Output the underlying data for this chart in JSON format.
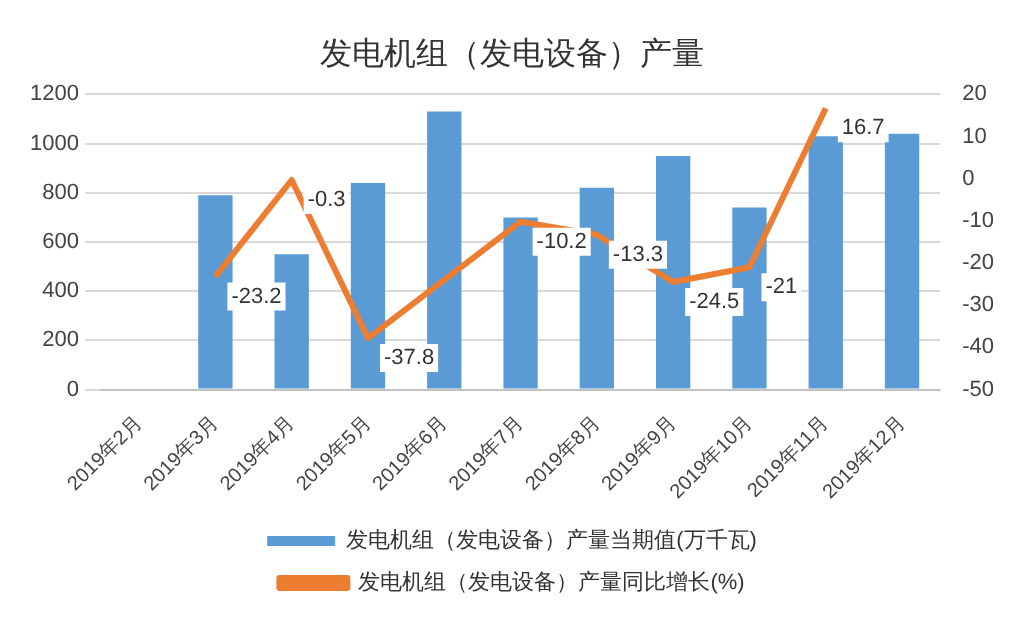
{
  "chart_data": {
    "type": "bar",
    "title": "发电机组（发电设备）产量",
    "categories": [
      "2019年2月",
      "2019年3月",
      "2019年4月",
      "2019年5月",
      "2019年6月",
      "2019年7月",
      "2019年8月",
      "2019年9月",
      "2019年10月",
      "2019年11月",
      "2019年12月"
    ],
    "series": [
      {
        "name": "发电机组（发电设备）产量当期值(万千瓦)",
        "color": "#5b9bd5",
        "values": [
          null,
          790,
          550,
          840,
          1130,
          700,
          820,
          950,
          740,
          1030,
          1040
        ]
      },
      {
        "name": "发电机组（发电设备）产量同比增长(%)",
        "type": "line",
        "axis": "y2",
        "color": "#ed7d31",
        "values": [
          null,
          -23.2,
          -0.3,
          -37.8,
          null,
          -10.2,
          -13.3,
          -24.5,
          -21,
          16.7,
          null
        ],
        "value_labels": [
          null,
          "-23.2",
          "-0.3",
          "-37.8",
          null,
          "-10.2",
          "-13.3",
          "-24.5",
          "-21",
          "16.7",
          null
        ]
      }
    ],
    "ylim": [
      0,
      1200
    ],
    "yticks": [
      0,
      200,
      400,
      600,
      800,
      1000,
      1200
    ],
    "y2lim": [
      -50,
      20
    ],
    "y2ticks": [
      -50,
      -40,
      -30,
      -20,
      -10,
      0,
      10,
      20
    ],
    "grid": "y",
    "legend": "bottom",
    "marker": "none"
  }
}
